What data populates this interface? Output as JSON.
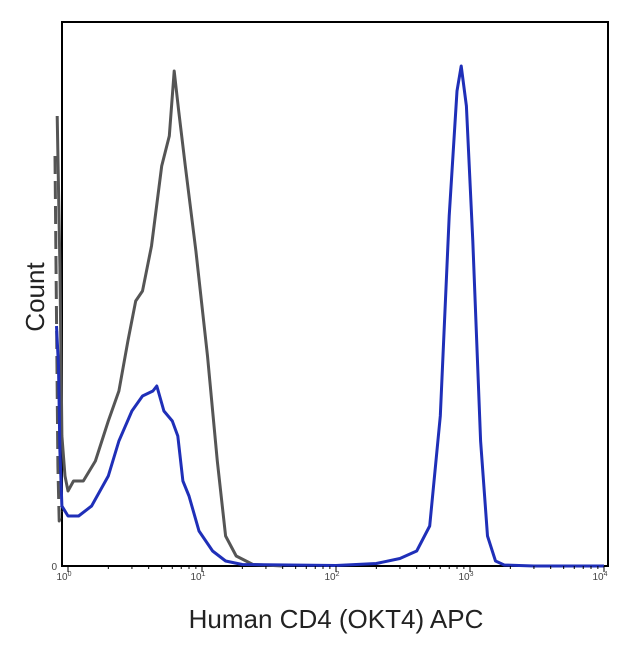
{
  "chart_data": {
    "type": "line",
    "xlabel": "Human CD4 (OKT4) APC",
    "ylabel": "Count",
    "x_scale": "log",
    "xlim": [
      1,
      10000
    ],
    "ylim": [
      0,
      100
    ],
    "grid": false,
    "y_tick_label": "0",
    "x_ticks": [
      {
        "value": 1,
        "base": "10",
        "exp": "0"
      },
      {
        "value": 10,
        "base": "10",
        "exp": "1"
      },
      {
        "value": 100,
        "base": "10",
        "exp": "2"
      },
      {
        "value": 1000,
        "base": "10",
        "exp": "3"
      },
      {
        "value": 10000,
        "base": "10",
        "exp": "4"
      }
    ],
    "series": [
      {
        "color": "#555555",
        "style": "solid",
        "points": [
          [
            0.83,
            90
          ],
          [
            0.87,
            60
          ],
          [
            0.9,
            26
          ],
          [
            0.95,
            18
          ],
          [
            1.0,
            15
          ],
          [
            1.1,
            17
          ],
          [
            1.3,
            17
          ],
          [
            1.6,
            21
          ],
          [
            2.0,
            29
          ],
          [
            2.4,
            35
          ],
          [
            2.8,
            45
          ],
          [
            3.2,
            53
          ],
          [
            3.6,
            55
          ],
          [
            4.2,
            64
          ],
          [
            5.0,
            80
          ],
          [
            5.7,
            86
          ],
          [
            6.2,
            99
          ],
          [
            6.7,
            91
          ],
          [
            7.5,
            80
          ],
          [
            9.0,
            63
          ],
          [
            11,
            42
          ],
          [
            13,
            21
          ],
          [
            15,
            6
          ],
          [
            18,
            2
          ],
          [
            24,
            0.3
          ],
          [
            40,
            0
          ]
        ]
      },
      {
        "color": "#555555",
        "style": "dashed",
        "points": [
          [
            0.8,
            82
          ],
          [
            0.82,
            50
          ],
          [
            0.84,
            20
          ],
          [
            0.86,
            9
          ],
          [
            0.9,
            11
          ]
        ]
      },
      {
        "color": "#1f2fb8",
        "style": "solid",
        "points": [
          [
            0.82,
            48
          ],
          [
            0.85,
            40
          ],
          [
            0.87,
            23
          ],
          [
            0.9,
            12
          ],
          [
            1.0,
            10
          ],
          [
            1.2,
            10
          ],
          [
            1.5,
            12
          ],
          [
            2.0,
            18
          ],
          [
            2.4,
            25
          ],
          [
            3.0,
            31
          ],
          [
            3.6,
            34
          ],
          [
            4.3,
            35
          ],
          [
            4.6,
            36
          ],
          [
            5.2,
            31
          ],
          [
            6.0,
            29
          ],
          [
            6.6,
            26
          ],
          [
            7.2,
            17
          ],
          [
            8.0,
            14
          ],
          [
            9.5,
            7
          ],
          [
            12,
            3
          ],
          [
            15,
            1
          ],
          [
            20,
            0.3
          ],
          [
            100,
            0.1
          ],
          [
            200,
            0.5
          ],
          [
            300,
            1.5
          ],
          [
            400,
            3
          ],
          [
            500,
            8
          ],
          [
            600,
            30
          ],
          [
            700,
            70
          ],
          [
            800,
            95
          ],
          [
            860,
            100
          ],
          [
            940,
            92
          ],
          [
            1050,
            65
          ],
          [
            1200,
            25
          ],
          [
            1350,
            6
          ],
          [
            1550,
            1
          ],
          [
            1800,
            0.2
          ],
          [
            3000,
            0
          ],
          [
            10000,
            0
          ]
        ]
      }
    ]
  }
}
